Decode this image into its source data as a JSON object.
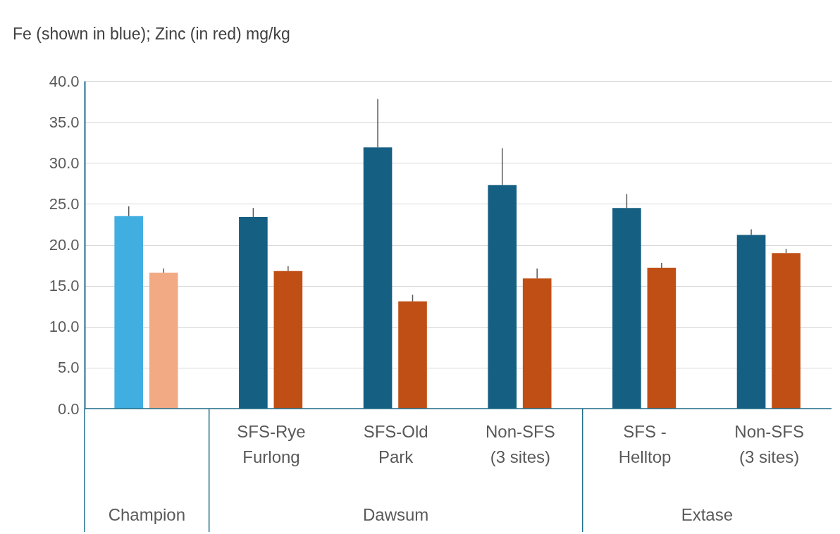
{
  "chart_data": {
    "type": "bar",
    "ylabel": "Fe (shown in blue); Zinc (in red)  mg/kg",
    "categories": [
      null,
      "SFS-Rye\nFurlong",
      "SFS-Old\nPark",
      "Non-SFS\n(3 sites)",
      "SFS -\nHelltop",
      "Non-SFS\n(3 sites)"
    ],
    "series": [
      {
        "colors": [
          "#41aee1",
          "#155f82",
          "#155f82",
          "#155f82",
          "#155f82",
          "#155f82"
        ],
        "values": [
          23.5,
          23.4,
          31.9,
          27.3,
          24.5,
          21.2
        ],
        "errors": [
          [
            23.5,
            24.7
          ],
          [
            23.4,
            24.5
          ],
          [
            31.9,
            37.8
          ],
          [
            27.3,
            31.8
          ],
          [
            24.5,
            26.2
          ],
          [
            21.2,
            21.9
          ]
        ]
      },
      {
        "colors": [
          "#f2aa84",
          "#c04f15",
          "#c04f15",
          "#c04f15",
          "#c04f15",
          "#c04f15"
        ],
        "values": [
          16.6,
          16.8,
          13.1,
          15.9,
          17.2,
          19.0
        ],
        "errors": [
          [
            16.6,
            17.1
          ],
          [
            16.8,
            17.4
          ],
          [
            13.1,
            13.9
          ],
          [
            15.9,
            17.1
          ],
          [
            17.2,
            17.8
          ],
          [
            19.0,
            19.5
          ]
        ]
      }
    ],
    "annotations": [
      "Champion",
      "Dawsum",
      "Extase"
    ],
    "ylim": [
      0,
      40
    ],
    "yticks": [
      {
        "value": 0,
        "label": "0.0"
      },
      {
        "value": 5,
        "label": "5.0"
      },
      {
        "value": 10,
        "label": "10.0"
      },
      {
        "value": 15,
        "label": "15.0"
      },
      {
        "value": 20,
        "label": "20.0"
      },
      {
        "value": 25,
        "label": "25.0"
      },
      {
        "value": 30,
        "label": "30.0"
      },
      {
        "value": 35,
        "label": "35.0"
      },
      {
        "value": 40,
        "label": "40.0"
      }
    ],
    "grid": "y"
  }
}
